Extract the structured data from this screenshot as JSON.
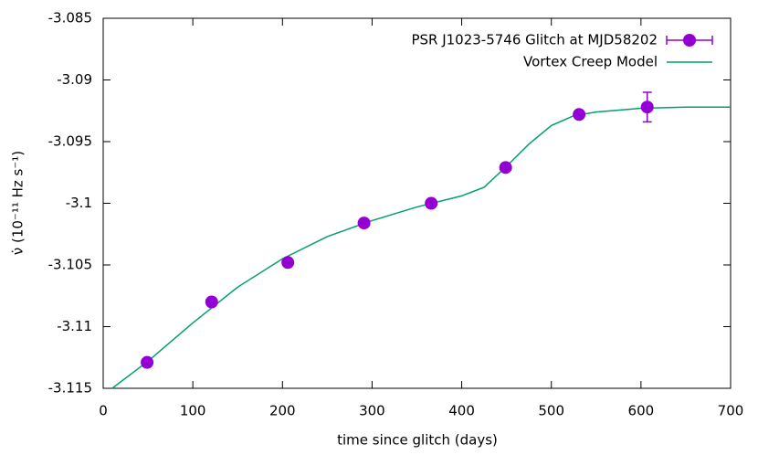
{
  "chart_data": {
    "type": "scatter-line",
    "xlabel": "time since glitch (days)",
    "ylabel": "ν̇ (10⁻¹¹ Hz s⁻¹)",
    "xlim": [
      0,
      700
    ],
    "xticks": [
      0,
      100,
      200,
      300,
      400,
      500,
      600,
      700
    ],
    "ylim": [
      -3.115,
      -3.085
    ],
    "yticks": [
      -3.115,
      -3.11,
      -3.105,
      -3.1,
      -3.095,
      -3.09,
      -3.085
    ],
    "legend": "top-right",
    "series": [
      {
        "name": "PSR J1023-5746 Glitch at MJD58202",
        "color": "#9400d3",
        "style": "points-errorbars",
        "x": [
          49,
          121,
          206,
          291,
          366,
          449,
          531,
          607
        ],
        "values": [
          -3.1129,
          -3.108,
          -3.1048,
          -3.1016,
          -3.1,
          -3.0971,
          -3.0928,
          -3.0922
        ],
        "errors": [
          null,
          null,
          null,
          null,
          null,
          null,
          null,
          0.0012
        ]
      },
      {
        "name": "Vortex Creep Model",
        "color": "#009e73",
        "style": "line",
        "x": [
          10,
          50,
          100,
          150,
          200,
          250,
          300,
          350,
          400,
          425,
          450,
          475,
          500,
          525,
          550,
          600,
          650,
          700
        ],
        "values": [
          -3.115,
          -3.1128,
          -3.1097,
          -3.1068,
          -3.1045,
          -3.1027,
          -3.1014,
          -3.1003,
          -3.0994,
          -3.0987,
          -3.097,
          -3.0952,
          -3.0937,
          -3.0929,
          -3.0926,
          -3.0923,
          -3.0922,
          -3.0922
        ]
      }
    ]
  }
}
